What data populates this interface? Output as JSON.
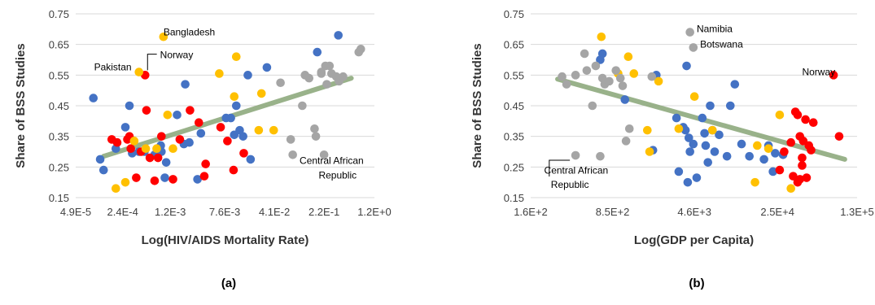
{
  "colors": {
    "blue": "#4472C4",
    "red": "#FF0000",
    "gold": "#FFC000",
    "gray": "#A5A5A5",
    "trend": "#8FAA7E",
    "grid": "#D9D9D9"
  },
  "chart_data": [
    {
      "type": "scatter",
      "panel_label": "(a)",
      "xlabel": "Log(HIV/AIDS Mortality Rate)",
      "ylabel": "Share of BSS Studies",
      "xscale": "log",
      "xlim_log10": [
        -4.31,
        0.08
      ],
      "ylim": [
        0.15,
        0.75
      ],
      "yticks": [
        "0.15",
        "0.25",
        "0.35",
        "0.45",
        "0.55",
        "0.65",
        "0.75"
      ],
      "xticks": [
        {
          "label": "4.9E-5",
          "log10": -4.31
        },
        {
          "label": "2.4E-4",
          "log10": -3.62
        },
        {
          "label": "1.2E-3",
          "log10": -2.92
        },
        {
          "label": "7.6E-3",
          "log10": -2.12
        },
        {
          "label": "4.1E-2",
          "log10": -1.39
        },
        {
          "label": "2.2E-1",
          "log10": -0.66
        },
        {
          "label": "1.2E+0",
          "log10": 0.08
        }
      ],
      "grid": "horizontal",
      "trendline": {
        "x_log10": [
          -3.9,
          -0.26
        ],
        "y": [
          0.285,
          0.54
        ]
      },
      "annotations": [
        {
          "text": "Bangladesh",
          "x_log10": -3.02,
          "y": 0.68,
          "pointer": false
        },
        {
          "text": "Pakistan",
          "x_log10": -4.04,
          "y": 0.565,
          "pointer": false
        },
        {
          "text": "Norway",
          "x_log10": -3.07,
          "y": 0.605,
          "pointer": true,
          "px": -3.29,
          "py": 0.55
        },
        {
          "text": "Central African",
          "x_log10": -1.02,
          "y": 0.26,
          "pointer": false
        },
        {
          "text": "Republic",
          "x_log10": -0.74,
          "y": 0.213,
          "pointer": false
        }
      ],
      "series": [
        {
          "color": "blue",
          "points": [
            [
              -4.05,
              0.475
            ],
            [
              -3.95,
              0.275
            ],
            [
              -3.9,
              0.24
            ],
            [
              -3.72,
              0.31
            ],
            [
              -3.58,
              0.38
            ],
            [
              -3.52,
              0.45
            ],
            [
              -3.48,
              0.295
            ],
            [
              -3.38,
              0.3
            ],
            [
              -3.3,
              0.3
            ],
            [
              -3.15,
              0.29
            ],
            [
              -3.06,
              0.32
            ],
            [
              -3.0,
              0.215
            ],
            [
              -2.82,
              0.42
            ],
            [
              -2.72,
              0.325
            ],
            [
              -2.7,
              0.52
            ],
            [
              -2.64,
              0.33
            ],
            [
              -2.52,
              0.21
            ],
            [
              -2.47,
              0.36
            ],
            [
              -2.1,
              0.41
            ],
            [
              -1.95,
              0.45
            ],
            [
              -1.9,
              0.37
            ],
            [
              -1.85,
              0.35
            ],
            [
              -1.78,
              0.55
            ],
            [
              -1.74,
              0.275
            ],
            [
              -1.5,
              0.575
            ],
            [
              -0.76,
              0.625
            ],
            [
              -0.45,
              0.68
            ],
            [
              -2.03,
              0.41
            ],
            [
              -1.98,
              0.355
            ],
            [
              -2.98,
              0.265
            ],
            [
              -3.05,
              0.3
            ]
          ]
        },
        {
          "color": "red",
          "points": [
            [
              -3.78,
              0.34
            ],
            [
              -3.7,
              0.33
            ],
            [
              -3.55,
              0.34
            ],
            [
              -3.52,
              0.35
            ],
            [
              -3.5,
              0.31
            ],
            [
              -3.35,
              0.3
            ],
            [
              -3.29,
              0.55
            ],
            [
              -3.27,
              0.435
            ],
            [
              -3.22,
              0.28
            ],
            [
              -3.15,
              0.205
            ],
            [
              -3.1,
              0.28
            ],
            [
              -3.05,
              0.35
            ],
            [
              -2.88,
              0.21
            ],
            [
              -2.78,
              0.34
            ],
            [
              -2.63,
              0.435
            ],
            [
              -2.5,
              0.395
            ],
            [
              -2.42,
              0.22
            ],
            [
              -2.4,
              0.26
            ],
            [
              -2.18,
              0.38
            ],
            [
              -1.99,
              0.24
            ],
            [
              -1.84,
              0.295
            ],
            [
              -2.08,
              0.335
            ],
            [
              -3.42,
              0.215
            ]
          ]
        },
        {
          "color": "gold",
          "points": [
            [
              -3.72,
              0.18
            ],
            [
              -3.58,
              0.2
            ],
            [
              -3.38,
              0.56
            ],
            [
              -3.28,
              0.31
            ],
            [
              -3.12,
              0.31
            ],
            [
              -3.02,
              0.675
            ],
            [
              -2.96,
              0.42
            ],
            [
              -2.88,
              0.31
            ],
            [
              -2.2,
              0.555
            ],
            [
              -1.98,
              0.48
            ],
            [
              -1.95,
              0.61
            ],
            [
              -1.62,
              0.37
            ],
            [
              -1.58,
              0.49
            ],
            [
              -1.4,
              0.37
            ],
            [
              -3.45,
              0.335
            ]
          ]
        },
        {
          "color": "gray",
          "points": [
            [
              -1.3,
              0.525
            ],
            [
              -1.15,
              0.34
            ],
            [
              -1.12,
              0.29
            ],
            [
              -0.98,
              0.45
            ],
            [
              -0.94,
              0.55
            ],
            [
              -0.88,
              0.54
            ],
            [
              -0.8,
              0.375
            ],
            [
              -0.78,
              0.35
            ],
            [
              -0.7,
              0.555
            ],
            [
              -0.64,
              0.58
            ],
            [
              -0.62,
              0.52
            ],
            [
              -0.58,
              0.58
            ],
            [
              -0.55,
              0.555
            ],
            [
              -0.48,
              0.545
            ],
            [
              -0.44,
              0.53
            ],
            [
              -0.38,
              0.545
            ],
            [
              -0.15,
              0.625
            ],
            [
              -0.12,
              0.635
            ],
            [
              -0.66,
              0.29
            ],
            [
              -0.7,
              0.56
            ]
          ]
        }
      ]
    },
    {
      "type": "scatter",
      "panel_label": "(b)",
      "xlabel": "Log(GDP per Capita)",
      "ylabel": "Share of BSS Studies",
      "xscale": "log",
      "xlim_log10": [
        2.2,
        5.11
      ],
      "ylim": [
        0.15,
        0.75
      ],
      "yticks": [
        "0.15",
        "0.25",
        "0.35",
        "0.45",
        "0.55",
        "0.65",
        "0.75"
      ],
      "xticks": [
        {
          "label": "1.6E+2",
          "log10": 2.2
        },
        {
          "label": "8.5E+2",
          "log10": 2.93
        },
        {
          "label": "4.6E+3",
          "log10": 3.66
        },
        {
          "label": "2.5E+4",
          "log10": 4.4
        },
        {
          "label": "1.3E+5",
          "log10": 5.11
        }
      ],
      "grid": "horizontal",
      "trendline": {
        "x_log10": [
          2.44,
          5.0
        ],
        "y": [
          0.537,
          0.275
        ]
      },
      "annotations": [
        {
          "text": "Namibia",
          "x_log10": 3.68,
          "y": 0.69,
          "pointer": false
        },
        {
          "text": "Botswana",
          "x_log10": 3.71,
          "y": 0.64,
          "pointer": false
        },
        {
          "text": "Norway",
          "x_log10": 4.62,
          "y": 0.55,
          "pointer": false
        },
        {
          "text": "Central African",
          "x_log10": 2.32,
          "y": 0.228,
          "pointer": false
        },
        {
          "text": "Republic",
          "x_log10": 2.38,
          "y": 0.182,
          "pointer": true,
          "px": 2.6,
          "py": 0.288
        }
      ],
      "series": [
        {
          "color": "blue",
          "points": [
            [
              2.82,
              0.6
            ],
            [
              2.84,
              0.62
            ],
            [
              3.04,
              0.47
            ],
            [
              3.32,
              0.55
            ],
            [
              3.29,
              0.305
            ],
            [
              3.5,
              0.41
            ],
            [
              3.52,
              0.235
            ],
            [
              3.56,
              0.38
            ],
            [
              3.58,
              0.37
            ],
            [
              3.59,
              0.58
            ],
            [
              3.6,
              0.2
            ],
            [
              3.61,
              0.345
            ],
            [
              3.62,
              0.3
            ],
            [
              3.65,
              0.325
            ],
            [
              3.68,
              0.215
            ],
            [
              3.73,
              0.41
            ],
            [
              3.75,
              0.36
            ],
            [
              3.76,
              0.32
            ],
            [
              3.78,
              0.265
            ],
            [
              3.8,
              0.45
            ],
            [
              3.82,
              0.37
            ],
            [
              3.84,
              0.3
            ],
            [
              3.88,
              0.355
            ],
            [
              3.95,
              0.285
            ],
            [
              3.98,
              0.45
            ],
            [
              4.02,
              0.52
            ],
            [
              4.08,
              0.325
            ],
            [
              4.15,
              0.285
            ],
            [
              4.28,
              0.275
            ],
            [
              4.32,
              0.32
            ],
            [
              4.38,
              0.295
            ],
            [
              4.45,
              0.29
            ],
            [
              4.36,
              0.235
            ]
          ]
        },
        {
          "color": "red",
          "points": [
            [
              4.46,
              0.3
            ],
            [
              4.52,
              0.33
            ],
            [
              4.56,
              0.43
            ],
            [
              4.58,
              0.42
            ],
            [
              4.6,
              0.35
            ],
            [
              4.63,
              0.335
            ],
            [
              4.65,
              0.405
            ],
            [
              4.68,
              0.32
            ],
            [
              4.7,
              0.305
            ],
            [
              4.72,
              0.395
            ],
            [
              4.58,
              0.2
            ],
            [
              4.6,
              0.21
            ],
            [
              4.62,
              0.255
            ],
            [
              4.62,
              0.28
            ],
            [
              4.66,
              0.215
            ],
            [
              4.54,
              0.22
            ],
            [
              4.9,
              0.55
            ],
            [
              4.95,
              0.35
            ],
            [
              4.42,
              0.24
            ]
          ]
        },
        {
          "color": "gold",
          "points": [
            [
              2.83,
              0.675
            ],
            [
              2.98,
              0.555
            ],
            [
              3.07,
              0.61
            ],
            [
              3.12,
              0.555
            ],
            [
              3.24,
              0.37
            ],
            [
              3.26,
              0.3
            ],
            [
              3.34,
              0.53
            ],
            [
              3.52,
              0.375
            ],
            [
              3.66,
              0.48
            ],
            [
              3.82,
              0.37
            ],
            [
              4.2,
              0.2
            ],
            [
              4.22,
              0.32
            ],
            [
              4.32,
              0.31
            ],
            [
              4.42,
              0.42
            ],
            [
              4.52,
              0.18
            ]
          ]
        },
        {
          "color": "gray",
          "points": [
            [
              2.48,
              0.545
            ],
            [
              2.52,
              0.52
            ],
            [
              2.6,
              0.55
            ],
            [
              2.68,
              0.62
            ],
            [
              2.7,
              0.565
            ],
            [
              2.75,
              0.45
            ],
            [
              2.78,
              0.58
            ],
            [
              2.84,
              0.54
            ],
            [
              2.86,
              0.52
            ],
            [
              2.9,
              0.53
            ],
            [
              2.96,
              0.565
            ],
            [
              3.0,
              0.54
            ],
            [
              3.02,
              0.515
            ],
            [
              3.05,
              0.335
            ],
            [
              3.08,
              0.375
            ],
            [
              3.28,
              0.545
            ],
            [
              3.62,
              0.69
            ],
            [
              3.65,
              0.64
            ],
            [
              2.6,
              0.288
            ],
            [
              2.82,
              0.285
            ]
          ]
        }
      ]
    }
  ]
}
